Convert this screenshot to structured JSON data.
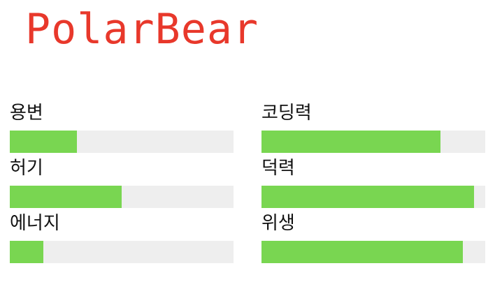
{
  "app": {
    "title": "PolarBear"
  },
  "colors": {
    "title": "#e8382b",
    "bar_fill": "#79d651",
    "bar_track": "#eeeeee"
  },
  "stats": [
    {
      "label": "용변",
      "value": 0.3
    },
    {
      "label": "코딩력",
      "value": 0.8
    },
    {
      "label": "허기",
      "value": 0.5
    },
    {
      "label": "덕력",
      "value": 0.95
    },
    {
      "label": "에너지",
      "value": 0.15
    },
    {
      "label": "위생",
      "value": 0.9
    }
  ]
}
